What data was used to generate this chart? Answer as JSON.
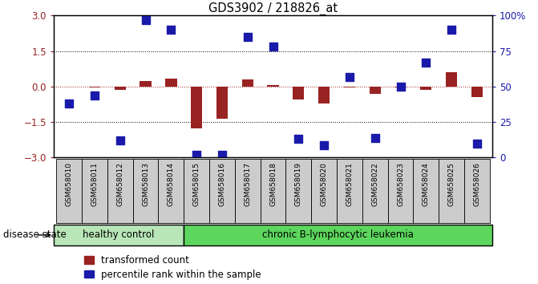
{
  "title": "GDS3902 / 218826_at",
  "samples": [
    "GSM658010",
    "GSM658011",
    "GSM658012",
    "GSM658013",
    "GSM658014",
    "GSM658015",
    "GSM658016",
    "GSM658017",
    "GSM658018",
    "GSM658019",
    "GSM658020",
    "GSM658021",
    "GSM658022",
    "GSM658023",
    "GSM658024",
    "GSM658025",
    "GSM658026"
  ],
  "red_values": [
    0.0,
    -0.05,
    -0.15,
    0.25,
    0.35,
    -1.75,
    -1.35,
    0.3,
    0.05,
    -0.55,
    -0.7,
    -0.05,
    -0.3,
    -0.05,
    -0.15,
    0.6,
    -0.45
  ],
  "blue_values_pct": [
    38,
    44,
    12,
    97,
    90,
    2,
    2,
    85,
    78,
    13,
    9,
    57,
    14,
    50,
    67,
    90,
    10
  ],
  "healthy_control_count": 5,
  "healthy_color": "#b8e6b8",
  "leukemia_color": "#5cd65c",
  "ylim_left": [
    -3,
    3
  ],
  "ylim_right": [
    0,
    100
  ],
  "yticks_left": [
    -3,
    -1.5,
    0,
    1.5,
    3
  ],
  "yticks_right": [
    0,
    25,
    50,
    75,
    100
  ],
  "red_color": "#992222",
  "blue_color": "#1a1aaa",
  "bar_width": 0.45,
  "dot_size": 50,
  "disease_state_label": "disease state",
  "healthy_label": "healthy control",
  "leukemia_label": "chronic B-lymphocytic leukemia",
  "legend_red": "transformed count",
  "legend_blue": "percentile rank within the sample",
  "sample_box_color": "#cccccc",
  "background_color": "#ffffff"
}
